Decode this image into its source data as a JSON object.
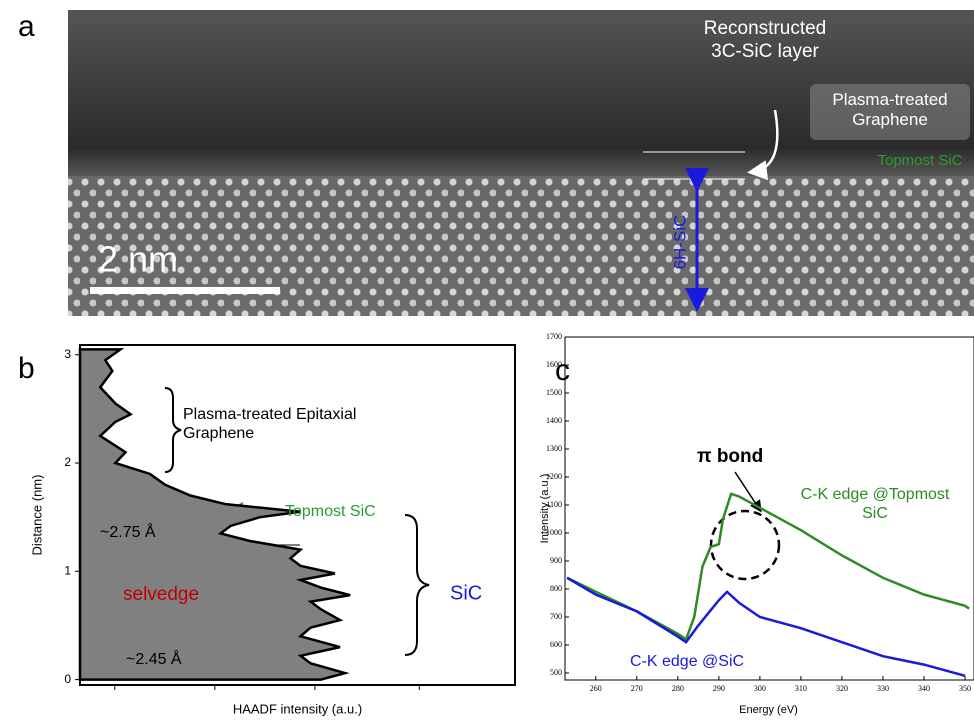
{
  "panel_labels": [
    "a",
    "b",
    "c"
  ],
  "micrograph": {
    "layer_label": "Reconstructed 3C-SiC layer",
    "graphene_label": "Plasma-treated Graphene",
    "topmost_label": "Topmost SiC",
    "substrate_label": "6H-SiC",
    "scale_bar": "2 nm"
  },
  "chart_data": [
    {
      "type": "area",
      "x_label": "HAADF intensity (a.u.)",
      "y_label": "Distance (nm)",
      "ylim": [
        -0.05,
        3.09
      ],
      "yticks": [
        0,
        1,
        2,
        3
      ],
      "xlim": [
        0,
        4.3
      ],
      "orientation": "vertical",
      "x": [
        3.05,
        2.95,
        2.85,
        2.7,
        2.55,
        2.45,
        2.38,
        2.25,
        2.1,
        2.0,
        1.9,
        1.8,
        1.7,
        1.62,
        1.55,
        1.5,
        1.42,
        1.35,
        1.28,
        1.2,
        1.12,
        1.05,
        0.98,
        0.92,
        0.85,
        0.78,
        0.72,
        0.65,
        0.55,
        0.48,
        0.4,
        0.3,
        0.22,
        0.15,
        0.06,
        0.0
      ],
      "series": [
        {
          "color": "#808080",
          "values": [
            0.4,
            0.25,
            0.32,
            0.2,
            0.35,
            0.5,
            0.35,
            0.2,
            0.45,
            0.35,
            0.69,
            0.84,
            1.09,
            1.44,
            2.18,
            1.78,
            1.49,
            1.39,
            1.68,
            2.18,
            2.08,
            2.18,
            2.52,
            2.18,
            2.38,
            2.67,
            2.28,
            2.38,
            2.57,
            2.28,
            2.18,
            2.57,
            2.18,
            2.28,
            2.62,
            2.38
          ]
        }
      ],
      "annotations": {
        "graphene": "Plasma-treated Epitaxial Graphene",
        "topmost": "Topmost SiC",
        "spacing_top": "~2.75 Å",
        "selvedge": "selvedge",
        "spacing_bottom": "~2.45 Å",
        "sic": "SiC"
      }
    },
    {
      "type": "line",
      "x_label": "Energy (eV)",
      "y_label": "Intensity (a.u.)",
      "xlim": [
        252.5,
        351.7
      ],
      "xticks": [
        260,
        270,
        280,
        290,
        300,
        310,
        320,
        330,
        340,
        350
      ],
      "ylim": [
        475,
        1700
      ],
      "yticks": [
        500,
        600,
        700,
        800,
        900,
        1000,
        1100,
        1200,
        1300,
        1400,
        1500,
        1600,
        1700
      ],
      "series": [
        {
          "name": "C-K edge @Topmost SiC",
          "color": "#2e8b22",
          "x": [
            253,
            260,
            270,
            280,
            282,
            284,
            286,
            288,
            290,
            291,
            293,
            295,
            300,
            310,
            320,
            330,
            340,
            350,
            351
          ],
          "values": [
            840,
            790,
            720,
            640,
            620,
            700,
            880,
            950,
            960,
            1050,
            1140,
            1130,
            1090,
            1010,
            920,
            840,
            780,
            740,
            730
          ]
        },
        {
          "name": "C-K edge @SiC",
          "color": "#1a1adc",
          "x": [
            253,
            260,
            270,
            280,
            282,
            285,
            290,
            292,
            295,
            300,
            310,
            320,
            330,
            340,
            350
          ],
          "values": [
            840,
            780,
            720,
            630,
            610,
            670,
            760,
            790,
            750,
            700,
            660,
            610,
            560,
            530,
            490
          ]
        }
      ],
      "annotations": {
        "pi": "π bond"
      }
    }
  ]
}
